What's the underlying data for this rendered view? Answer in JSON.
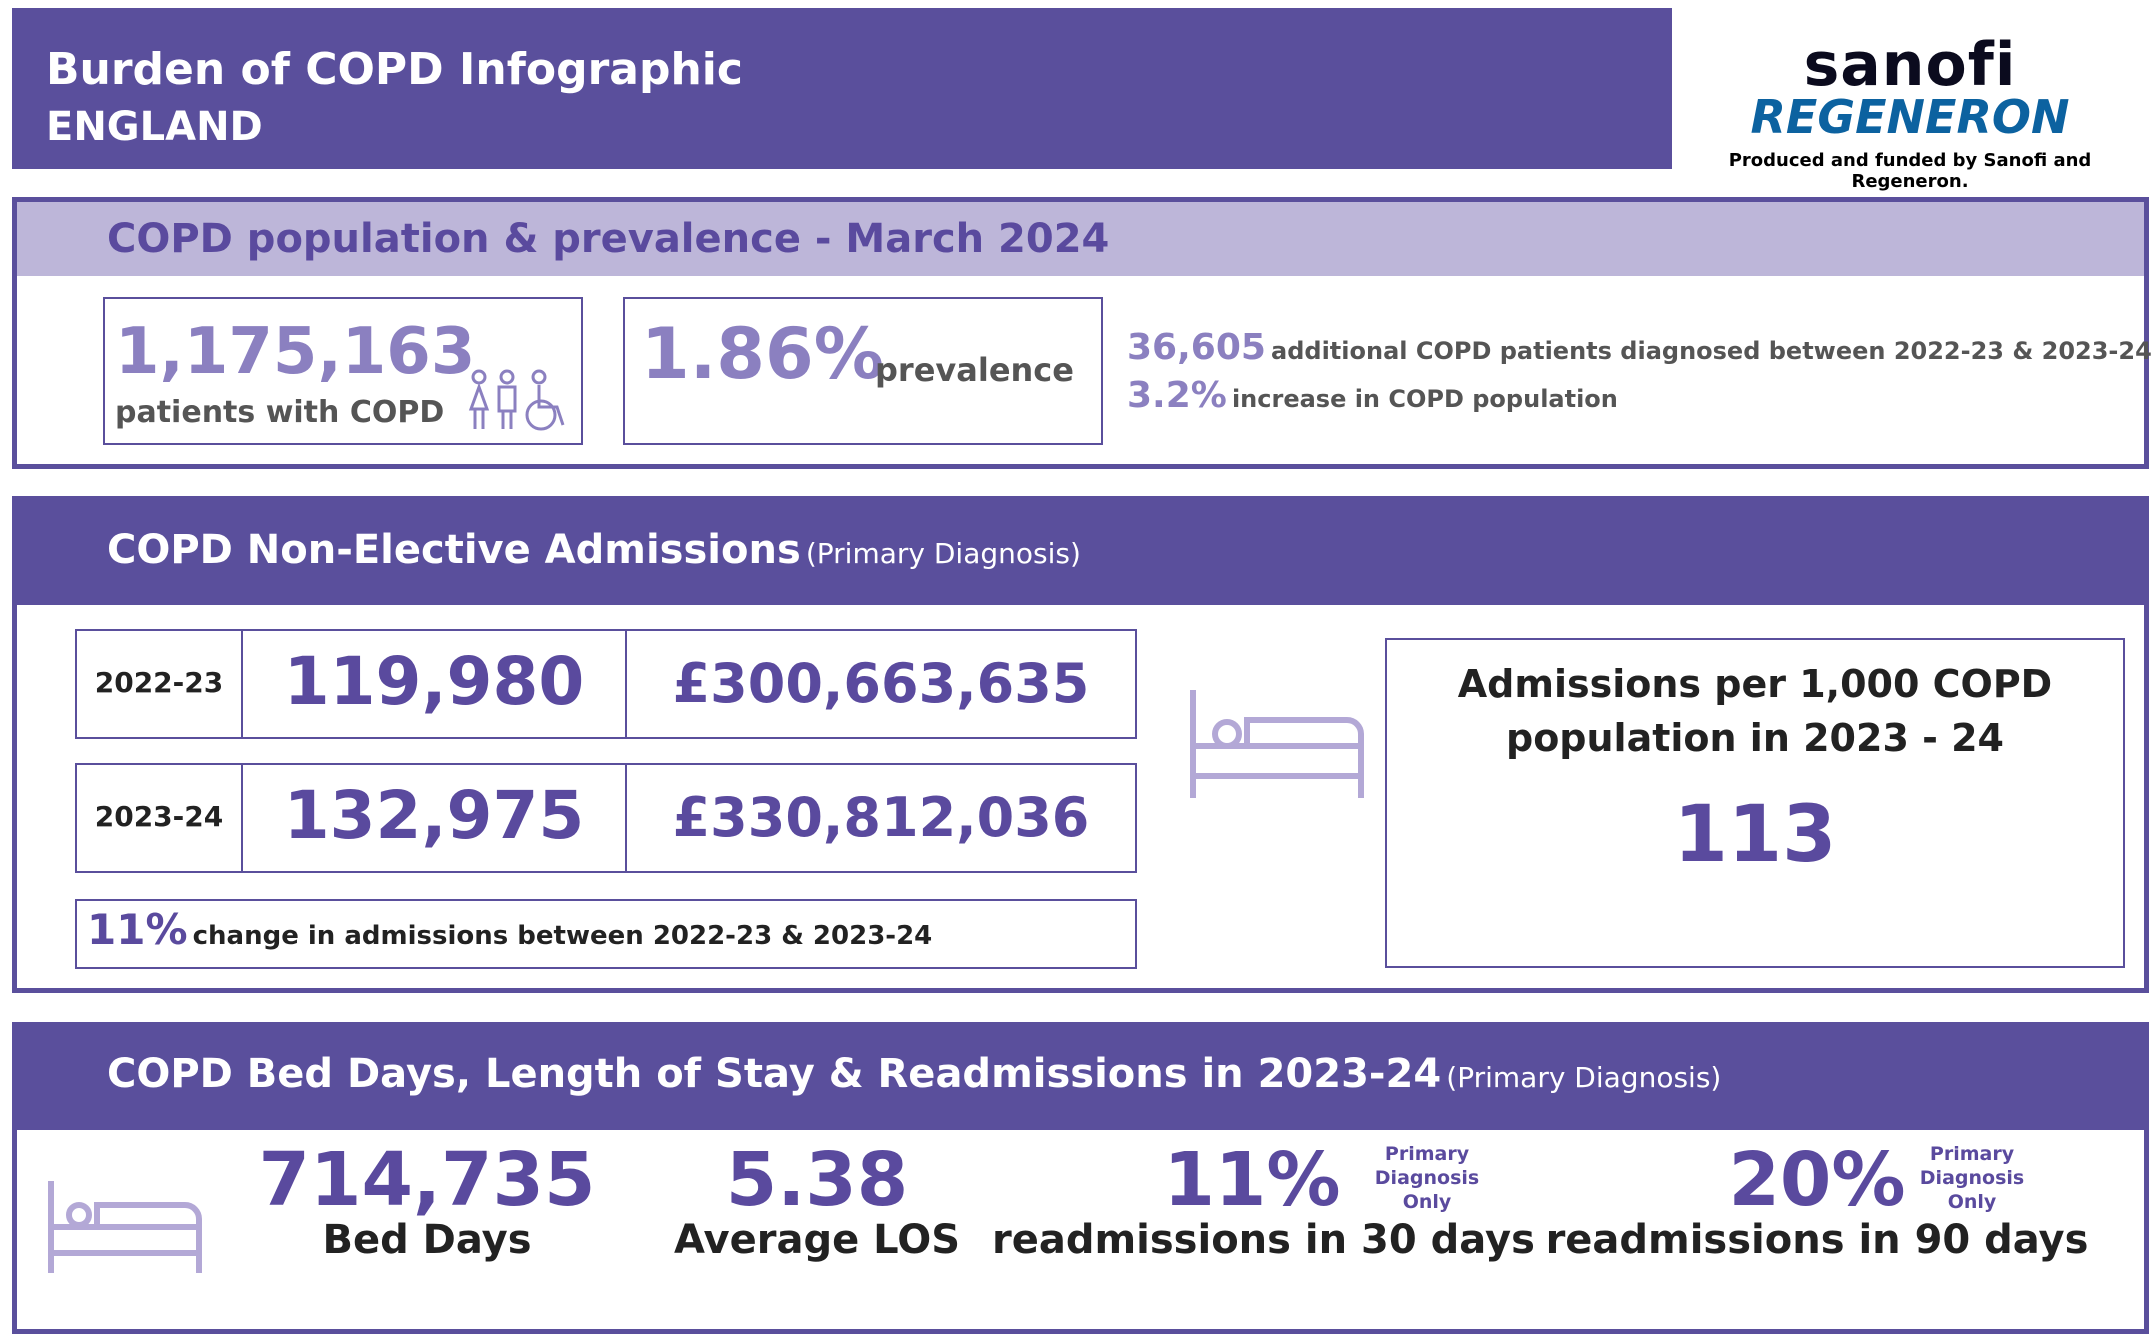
{
  "header": {
    "title": "Burden of COPD Infographic",
    "region": "ENGLAND"
  },
  "logo": {
    "sanofi": "sanofi",
    "regeneron": "REGENERON",
    "credit": "Produced and funded by Sanofi and Regeneron."
  },
  "population": {
    "title": "COPD population & prevalence - March 2024",
    "patients": "1,175,163",
    "patients_label": "patients with COPD",
    "prevalence": "1.86%",
    "prevalence_label": "prevalence",
    "additional": "36,605",
    "additional_label": "additional COPD patients diagnosed between 2022-23 & 2023-24",
    "increase": "3.2%",
    "increase_label": "increase in COPD population"
  },
  "admissions": {
    "title": "COPD Non-Elective Admissions",
    "subtitle": "(Primary Diagnosis)",
    "rows": [
      {
        "year": "2022-23",
        "count": "119,980",
        "cost": "£300,663,635"
      },
      {
        "year": "2023-24",
        "count": "132,975",
        "cost": "£330,812,036"
      }
    ],
    "change": "11%",
    "change_label": "change in admissions between 2022-23 & 2023-24",
    "per1000_label_1": "Admissions per 1,000 COPD",
    "per1000_label_2": "population in 2023 - 24",
    "per1000": "113"
  },
  "beddays": {
    "title": "COPD Bed Days, Length of Stay & Readmissions in 2023-24",
    "subtitle": "(Primary Diagnosis)",
    "bed_days": "714,735",
    "bed_days_label": "Bed Days",
    "los": "5.38",
    "los_label": "Average LOS",
    "r30": "11%",
    "r30_label": "readmissions in 30 days",
    "r90": "20%",
    "r90_label": "readmissions in 90 days",
    "note1": "Primary",
    "note2": "Diagnosis",
    "note3": "Only"
  }
}
